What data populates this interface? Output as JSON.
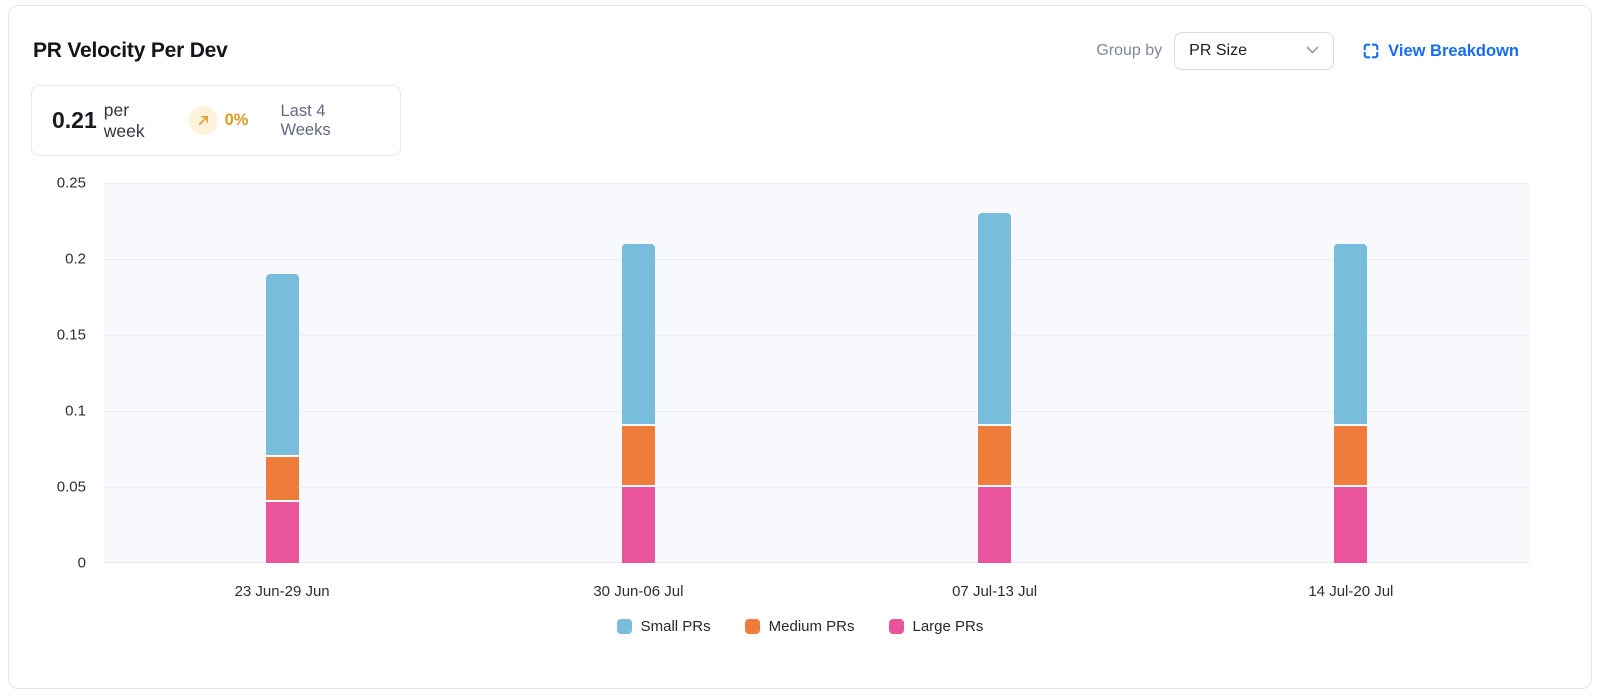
{
  "header": {
    "title": "PR Velocity Per Dev",
    "group_by_label": "Group by",
    "group_by_value": "PR Size",
    "view_breakdown_label": "View Breakdown"
  },
  "summary": {
    "value": "0.21",
    "unit": "per week",
    "trend_icon": "arrow-up-right-icon",
    "change": "0%",
    "period": "Last 4 Weeks"
  },
  "chart_data": {
    "type": "bar",
    "stacked": true,
    "title": "PR Velocity Per Dev",
    "categories": [
      "23 Jun-29 Jun",
      "30 Jun-06 Jul",
      "07 Jul-13 Jul",
      "14 Jul-20 Jul"
    ],
    "series": [
      {
        "name": "Small PRs",
        "color": "#79bddc",
        "values": [
          0.12,
          0.12,
          0.14,
          0.12
        ]
      },
      {
        "name": "Medium PRs",
        "color": "#ee7c3b",
        "values": [
          0.03,
          0.04,
          0.04,
          0.04
        ]
      },
      {
        "name": "Large PRs",
        "color": "#e9549d",
        "values": [
          0.04,
          0.05,
          0.05,
          0.05
        ]
      }
    ],
    "stack_order_bottom_to_top": [
      "Large PRs",
      "Medium PRs",
      "Small PRs"
    ],
    "totals": [
      0.19,
      0.21,
      0.23,
      0.21
    ],
    "xlabel": "",
    "ylabel": "",
    "ylim": [
      0,
      0.25
    ],
    "yticks": [
      0,
      0.05,
      0.1,
      0.15,
      0.2,
      0.25
    ],
    "grid": true,
    "legend_position": "bottom",
    "plot_background": "#f8f9fd",
    "gridline_color": "#eceef5"
  },
  "colors": {
    "accent_blue": "#176ef1",
    "amber": "#d99b22",
    "amber_badge_bg": "#fcf3da"
  }
}
